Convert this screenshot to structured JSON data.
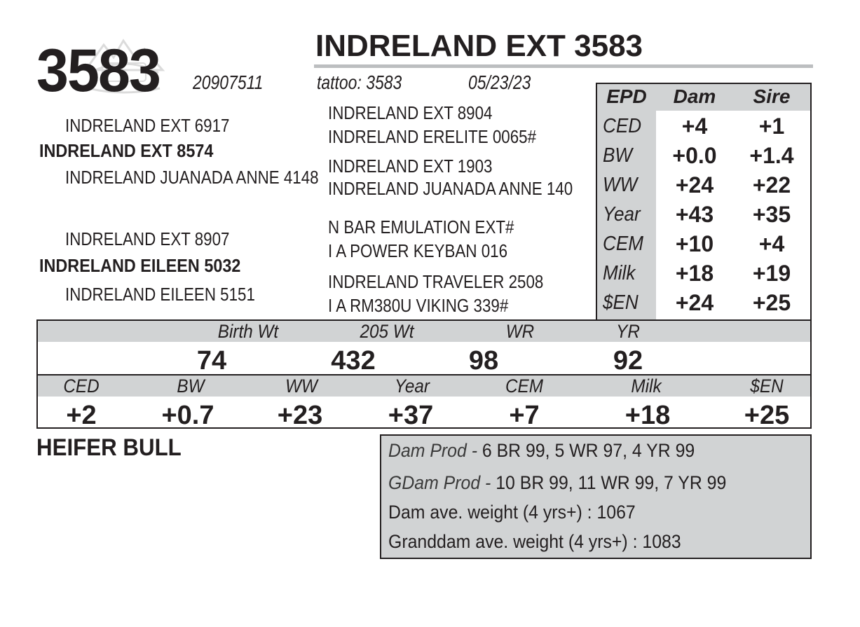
{
  "lot": "3583",
  "animal_name": "INDRELAND EXT 3583",
  "registration": "20907511",
  "tattoo": "tattoo: 3583",
  "birth_date": "05/23/23",
  "pedigree": {
    "sire": "INDRELAND EXT 8574",
    "sire_sire": "INDRELAND EXT 6917",
    "sire_dam": "INDRELAND JUANADA ANNE 4148",
    "dam": "INDRELAND EILEEN 5032",
    "dam_sire": "INDRELAND EXT 8907",
    "dam_dam": "INDRELAND EILEEN 5151",
    "ss_sire": "INDRELAND EXT 8904",
    "ss_dam": "INDRELAND ERELITE 0065#",
    "sd_sire": "INDRELAND EXT 1903",
    "sd_dam": "INDRELAND JUANADA ANNE 140",
    "ds_sire": "N BAR EMULATION EXT#",
    "ds_dam": "I A POWER KEYBAN 016",
    "dd_sire": "INDRELAND TRAVELER 2508",
    "dd_dam": "I A RM380U VIKING 339#"
  },
  "epd_table": {
    "headers": [
      "EPD",
      "Dam",
      "Sire"
    ],
    "rows": [
      {
        "label": "CED",
        "dam": "+4",
        "sire": "+1"
      },
      {
        "label": "BW",
        "dam": "+0.0",
        "sire": "+1.4"
      },
      {
        "label": "WW",
        "dam": "+24",
        "sire": "+22"
      },
      {
        "label": "Year",
        "dam": "+43",
        "sire": "+35"
      },
      {
        "label": "CEM",
        "dam": "+10",
        "sire": "+4"
      },
      {
        "label": "Milk",
        "dam": "+18",
        "sire": "+19"
      },
      {
        "label": "$EN",
        "dam": "+24",
        "sire": "+25"
      }
    ]
  },
  "weights": {
    "labels": [
      "Birth Wt",
      "205 Wt",
      "WR",
      "YR"
    ],
    "values": [
      "74",
      "432",
      "98",
      "92"
    ]
  },
  "calf_epds": {
    "labels": [
      "CED",
      "BW",
      "WW",
      "Year",
      "CEM",
      "Milk",
      "$EN"
    ],
    "values": [
      "+2",
      "+0.7",
      "+23",
      "+37",
      "+7",
      "+18",
      "+25"
    ]
  },
  "designation": "HEIFER BULL",
  "production": {
    "dam_prod_label": "Dam Prod - ",
    "dam_prod_value": "6 BR 99, 5 WR 97, 4 YR 99",
    "gdam_prod_label": "GDam Prod - ",
    "gdam_prod_value": "10 BR 99, 11 WR 99, 7 YR 99",
    "dam_weight": "Dam ave. weight (4 yrs+) : 1067",
    "granddam_weight": "Granddam ave. weight (4 yrs+) : 1083"
  },
  "colors": {
    "text": "#231f20",
    "shade": "#d1d3d4",
    "rule": "#bcbec0"
  },
  "icons": [
    "ranch-logo-watermark"
  ]
}
